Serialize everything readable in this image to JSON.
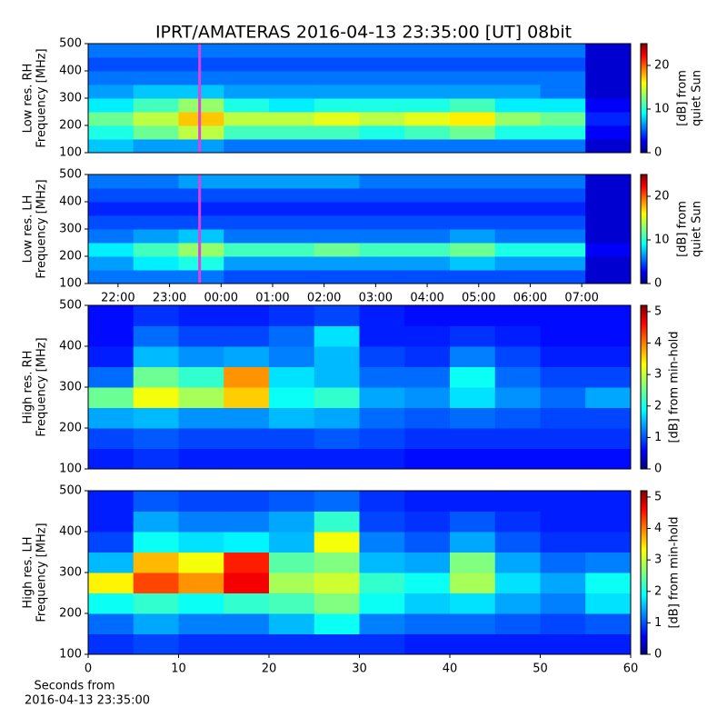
{
  "title": "IPRT/AMATERAS 2016-04-13 23:35:00 [UT]   08bit",
  "chart_data": [
    {
      "type": "heatmap",
      "ylabel": [
        "Low res. RH",
        "Frequency [MHz]"
      ],
      "clabel": [
        "[dB] from",
        "quiet Sun"
      ],
      "xlim": [
        21.42,
        31.95
      ],
      "ylim": [
        100,
        500
      ],
      "yticks": [
        100,
        200,
        300,
        400,
        500
      ],
      "zlim": [
        0,
        25
      ],
      "cticks": [
        0,
        10,
        20
      ],
      "marker_x": 23.583,
      "marker_color": "#e040e0",
      "z": [
        [
          8,
          7,
          7,
          6,
          6,
          6,
          6,
          6,
          6,
          6,
          6,
          2
        ],
        [
          10,
          12,
          14,
          11,
          11,
          11,
          10,
          11,
          12,
          10,
          10,
          3
        ],
        [
          12,
          14,
          17,
          14,
          14,
          15,
          14,
          15,
          16,
          13,
          12,
          4
        ],
        [
          9,
          11,
          13,
          10,
          9,
          10,
          10,
          10,
          11,
          9,
          9,
          3
        ],
        [
          7,
          8,
          8,
          7,
          7,
          7,
          7,
          7,
          7,
          7,
          6,
          2
        ],
        [
          6,
          6,
          6,
          6,
          6,
          6,
          6,
          6,
          6,
          6,
          6,
          2
        ],
        [
          5,
          5,
          5,
          5,
          5,
          5,
          5,
          5,
          5,
          5,
          5,
          2
        ],
        [
          6,
          6,
          6,
          6,
          6,
          6,
          6,
          6,
          6,
          6,
          6,
          2
        ]
      ]
    },
    {
      "type": "heatmap",
      "ylabel": [
        "Low res. LH",
        "Frequency [MHz]"
      ],
      "clabel": [
        "[dB] from",
        "quiet Sun"
      ],
      "xlim": [
        21.42,
        31.95
      ],
      "ylim": [
        100,
        500
      ],
      "yticks": [
        100,
        200,
        300,
        400,
        500
      ],
      "xticks": [
        {
          "value": 22,
          "label": "22:00"
        },
        {
          "value": 23,
          "label": "23:00"
        },
        {
          "value": 24,
          "label": "00:00"
        },
        {
          "value": 25,
          "label": "01:00"
        },
        {
          "value": 26,
          "label": "02:00"
        },
        {
          "value": 27,
          "label": "03:00"
        },
        {
          "value": 28,
          "label": "04:00"
        },
        {
          "value": 29,
          "label": "05:00"
        },
        {
          "value": 30,
          "label": "06:00"
        },
        {
          "value": 31,
          "label": "07:00"
        }
      ],
      "zlim": [
        0,
        25
      ],
      "cticks": [
        0,
        10,
        20
      ],
      "marker_x": 23.583,
      "marker_color": "#e040e0",
      "z": [
        [
          6,
          6,
          6,
          5,
          5,
          5,
          5,
          5,
          5,
          5,
          5,
          2
        ],
        [
          7,
          9,
          10,
          7,
          7,
          7,
          7,
          7,
          8,
          7,
          7,
          2
        ],
        [
          9,
          11,
          13,
          11,
          11,
          12,
          11,
          11,
          12,
          10,
          10,
          3
        ],
        [
          6,
          7,
          8,
          6,
          6,
          6,
          6,
          6,
          7,
          6,
          6,
          2
        ],
        [
          5,
          5,
          5,
          5,
          5,
          5,
          5,
          5,
          5,
          5,
          5,
          2
        ],
        [
          4,
          4,
          4,
          4,
          4,
          4,
          4,
          4,
          4,
          4,
          4,
          2
        ],
        [
          5,
          5,
          5,
          5,
          5,
          5,
          5,
          5,
          5,
          5,
          5,
          2
        ],
        [
          6,
          6,
          7,
          7,
          7,
          7,
          6,
          6,
          6,
          6,
          6,
          2
        ]
      ]
    },
    {
      "type": "heatmap",
      "ylabel": [
        "High res. RH",
        "Frequency [MHz]"
      ],
      "clabel": [
        "[dB] from min-hold"
      ],
      "xlim": [
        0,
        60
      ],
      "ylim": [
        100,
        500
      ],
      "yticks": [
        100,
        200,
        300,
        400,
        500
      ],
      "zlim": [
        0,
        5.2
      ],
      "cticks": [
        0,
        1,
        2,
        3,
        4,
        5
      ],
      "z": [
        [
          0.8,
          0.9,
          0.8,
          0.8,
          0.8,
          0.8,
          0.8,
          0.7,
          0.7,
          0.7,
          0.7,
          0.7
        ],
        [
          1.0,
          1.1,
          1.0,
          1.0,
          1.0,
          1.1,
          1.0,
          0.9,
          0.9,
          0.9,
          0.9,
          0.9
        ],
        [
          1.5,
          1.6,
          1.4,
          1.4,
          1.6,
          1.5,
          1.2,
          1.1,
          1.2,
          1.1,
          1.0,
          1.0
        ],
        [
          2.5,
          3.2,
          2.8,
          3.5,
          2.0,
          2.2,
          1.5,
          1.4,
          1.8,
          1.4,
          1.2,
          1.5
        ],
        [
          1.2,
          2.5,
          2.2,
          3.8,
          1.8,
          1.6,
          1.2,
          1.2,
          2.0,
          1.2,
          1.0,
          1.0
        ],
        [
          0.8,
          1.6,
          1.4,
          1.5,
          1.3,
          1.6,
          1.0,
          0.9,
          1.3,
          1.0,
          0.8,
          0.8
        ],
        [
          0.7,
          1.2,
          1.0,
          1.0,
          1.2,
          1.8,
          0.8,
          0.8,
          0.9,
          0.8,
          0.7,
          0.7
        ],
        [
          0.7,
          0.9,
          0.8,
          0.8,
          0.9,
          1.0,
          0.8,
          0.7,
          0.7,
          0.7,
          0.7,
          0.7
        ]
      ]
    },
    {
      "type": "heatmap",
      "ylabel": [
        "High res. LH",
        "Frequency [MHz]"
      ],
      "clabel": [
        "[dB] from min-hold"
      ],
      "xlim": [
        0,
        60
      ],
      "ylim": [
        100,
        500
      ],
      "yticks": [
        100,
        200,
        300,
        400,
        500
      ],
      "xticks": [
        0,
        10,
        20,
        30,
        40,
        50,
        60
      ],
      "xlabel": [
        "Seconds from",
        "2016-04-13 23:35:00"
      ],
      "zlim": [
        0,
        5.2
      ],
      "cticks": [
        0,
        1,
        2,
        3,
        4,
        5
      ],
      "z": [
        [
          0.9,
          1.0,
          0.9,
          0.9,
          0.9,
          0.9,
          0.9,
          0.8,
          0.8,
          0.8,
          0.8,
          0.8
        ],
        [
          1.2,
          1.5,
          1.3,
          1.3,
          1.6,
          2.0,
          1.3,
          1.2,
          1.2,
          1.1,
          1.0,
          1.1
        ],
        [
          2.0,
          2.2,
          2.0,
          2.2,
          2.3,
          2.6,
          2.0,
          1.7,
          1.8,
          1.5,
          1.3,
          1.8
        ],
        [
          3.3,
          4.2,
          3.8,
          4.6,
          2.8,
          3.0,
          2.2,
          2.0,
          2.8,
          1.8,
          1.5,
          2.0
        ],
        [
          1.6,
          3.6,
          3.2,
          4.4,
          2.4,
          2.6,
          1.6,
          1.5,
          2.6,
          1.5,
          1.2,
          1.3
        ],
        [
          1.0,
          2.0,
          1.8,
          1.9,
          1.6,
          3.2,
          1.3,
          1.1,
          1.5,
          1.1,
          0.9,
          0.9
        ],
        [
          0.8,
          1.5,
          1.3,
          1.3,
          1.5,
          2.2,
          1.0,
          0.9,
          1.1,
          0.9,
          0.8,
          0.8
        ],
        [
          0.8,
          1.1,
          1.0,
          1.0,
          1.1,
          1.2,
          0.9,
          0.8,
          0.8,
          0.8,
          0.8,
          0.8
        ]
      ]
    }
  ]
}
